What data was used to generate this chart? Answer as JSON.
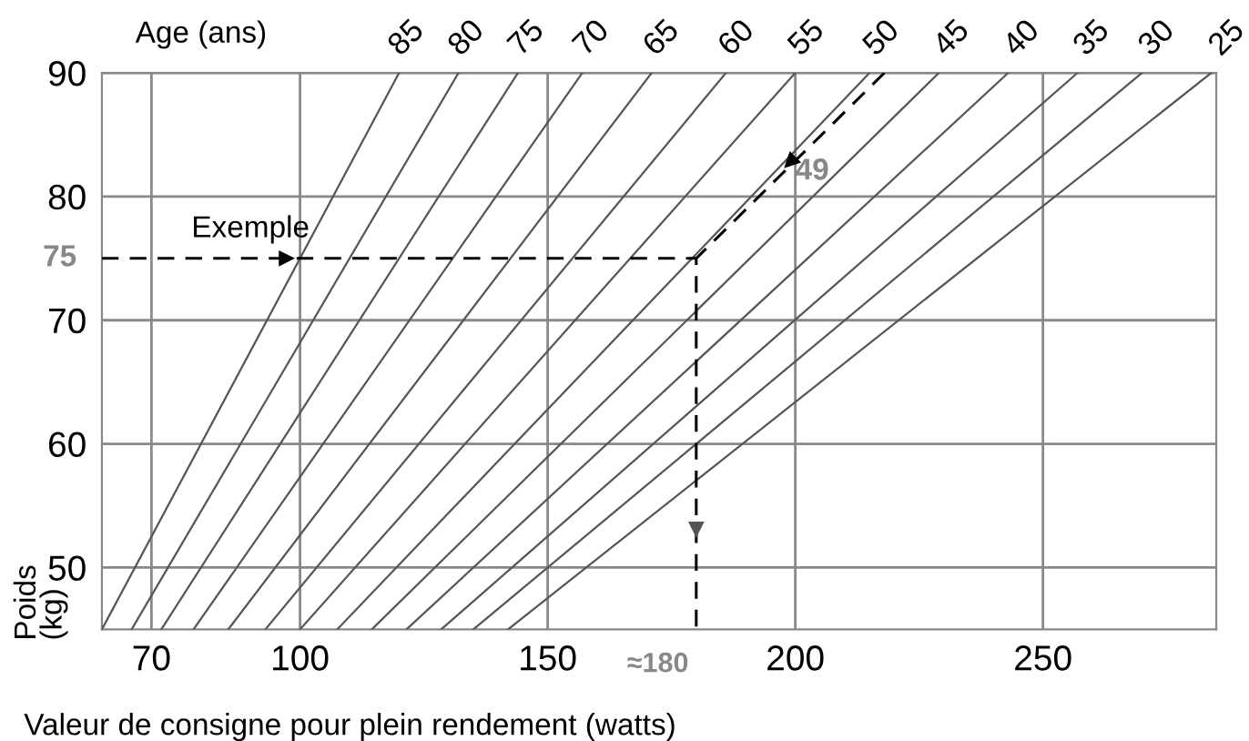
{
  "chart_data": {
    "type": "line",
    "title": "Age (ans)",
    "xlabel": "Valeur de consigne pour plein rendement (watts)",
    "ylabel": "Poids\n(kg)",
    "xlim": [
      60,
      285
    ],
    "ylim": [
      45,
      90
    ],
    "xticks": [
      70,
      100,
      150,
      200,
      250
    ],
    "yticks": [
      50,
      60,
      70,
      80,
      90
    ],
    "grid": true,
    "line_style": "solid",
    "marker": "none",
    "series": [
      {
        "name": "85",
        "color": "#555555",
        "x": [
          60,
          120
        ],
        "values": [
          45,
          90
        ]
      },
      {
        "name": "80",
        "color": "#555555",
        "x": [
          66,
          132
        ],
        "values": [
          45,
          90
        ]
      },
      {
        "name": "75",
        "color": "#555555",
        "x": [
          72,
          144
        ],
        "values": [
          45,
          90
        ]
      },
      {
        "name": "70",
        "color": "#555555",
        "x": [
          78.5,
          157
        ],
        "values": [
          45,
          90
        ]
      },
      {
        "name": "65",
        "color": "#555555",
        "x": [
          85.5,
          171
        ],
        "values": [
          45,
          90
        ]
      },
      {
        "name": "60",
        "color": "#555555",
        "x": [
          93,
          186
        ],
        "values": [
          45,
          90
        ]
      },
      {
        "name": "55",
        "color": "#555555",
        "x": [
          100,
          200
        ],
        "values": [
          45,
          90
        ]
      },
      {
        "name": "50",
        "color": "#555555",
        "x": [
          107.5,
          215
        ],
        "values": [
          45,
          90
        ]
      },
      {
        "name": "45",
        "color": "#555555",
        "x": [
          114.5,
          229
        ],
        "values": [
          45,
          90
        ]
      },
      {
        "name": "40",
        "color": "#555555",
        "x": [
          121.5,
          243
        ],
        "values": [
          45,
          90
        ]
      },
      {
        "name": "35",
        "color": "#555555",
        "x": [
          128.5,
          257
        ],
        "values": [
          45,
          90
        ]
      },
      {
        "name": "30",
        "color": "#555555",
        "x": [
          135,
          270
        ],
        "values": [
          45,
          90
        ]
      },
      {
        "name": "25",
        "color": "#555555",
        "x": [
          142,
          284
        ],
        "values": [
          45,
          90
        ]
      },
      {
        "color": "#000000",
        "line_style": "dashed",
        "x": [
          60,
          180,
          180
        ],
        "values": [
          75,
          75,
          45
        ]
      },
      {
        "color": "#000000",
        "line_style": "dashed",
        "x": [
          218,
          180
        ],
        "values": [
          90,
          75
        ]
      }
    ],
    "annotations": [
      {
        "text": "Exemple",
        "x": 100,
        "y": 75
      },
      {
        "text": "75",
        "x": 60,
        "y": 75
      },
      {
        "text": "49",
        "x": 198,
        "y": 82
      },
      {
        "text": "≈180",
        "x": 180,
        "y": 45
      }
    ]
  }
}
